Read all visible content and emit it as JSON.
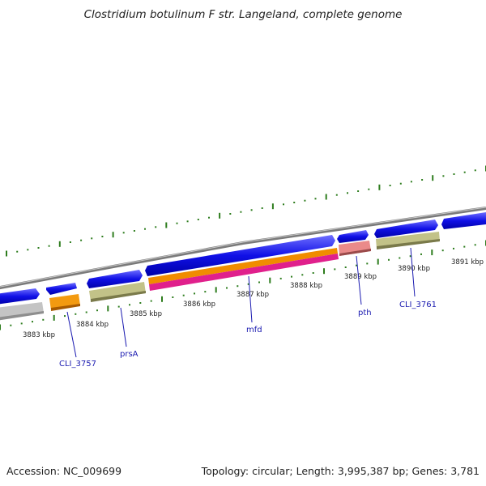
{
  "title": "Clostridium botulinum F str. Langeland, complete genome",
  "footer": {
    "accession": "Accession: NC_009699",
    "summary": "Topology: circular; Length: 3,995,387 bp; Genes: 3,781"
  },
  "kbp_labels": [
    "3883 kbp",
    "3884 kbp",
    "3885 kbp",
    "3886 kbp",
    "3887 kbp",
    "3888 kbp",
    "3889 kbp",
    "3890 kbp",
    "3891 kbp"
  ],
  "gene_labels": [
    "CLI_3757",
    "prsA",
    "mfd",
    "pth",
    "CLI_3761"
  ],
  "colors": {
    "backbone": "#8a8a8a",
    "cds_arrow": "#1010e0",
    "gene_gray": "#b8b8b8",
    "gene_orange": "#f08c00",
    "gene_khaki": "#bdbd80",
    "gene_red": "#e88080",
    "gene_magenta": "#e0208c",
    "tick_green": "#2e7d1e",
    "label_blue": "#1a1ab0"
  }
}
